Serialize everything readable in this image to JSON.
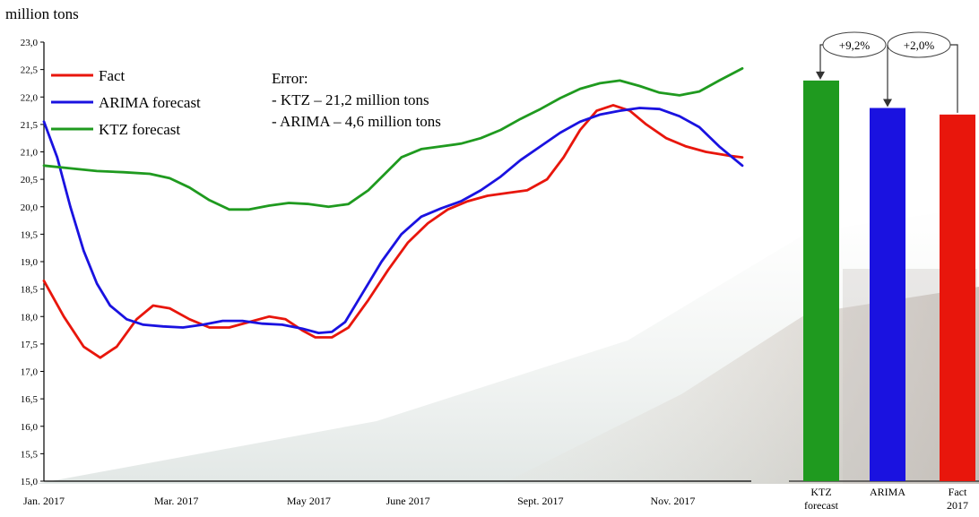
{
  "unit_label": "million tons",
  "error_note": {
    "title": "Error:",
    "lines": [
      "- KTZ – 21,2 million tons",
      "- ARIMA – 4,6 million tons"
    ]
  },
  "colors": {
    "fact": "#e8160c",
    "arima": "#1a12e0",
    "ktz": "#1f9a1f"
  },
  "chart_data": [
    {
      "type": "line",
      "ylim": [
        15.0,
        23.0
      ],
      "yticks": [
        "15,0",
        "15,5",
        "16,0",
        "16,5",
        "17,0",
        "17,5",
        "18,0",
        "18,5",
        "19,0",
        "19,5",
        "20,0",
        "20,5",
        "21,0",
        "21,5",
        "22,0",
        "22,5",
        "23,0"
      ],
      "xticks": [
        {
          "label": "Jan. 2017",
          "x": 0
        },
        {
          "label": "Mar. 2017",
          "x": 2
        },
        {
          "label": "May 2017",
          "x": 4
        },
        {
          "label": "June 2017",
          "x": 5.5
        },
        {
          "label": "Sept. 2017",
          "x": 7.5
        },
        {
          "label": "Nov. 2017",
          "x": 9.5
        }
      ],
      "xlim": [
        0,
        10.7
      ],
      "legend_position": "top-left",
      "series": [
        {
          "name": "Fact",
          "color_key": "fact",
          "points": [
            [
              0,
              18.65
            ],
            [
              0.3,
              18.0
            ],
            [
              0.6,
              17.45
            ],
            [
              0.85,
              17.25
            ],
            [
              1.1,
              17.45
            ],
            [
              1.4,
              17.95
            ],
            [
              1.65,
              18.2
            ],
            [
              1.9,
              18.15
            ],
            [
              2.2,
              17.95
            ],
            [
              2.5,
              17.8
            ],
            [
              2.8,
              17.8
            ],
            [
              3.1,
              17.9
            ],
            [
              3.4,
              18.0
            ],
            [
              3.65,
              17.95
            ],
            [
              3.9,
              17.75
            ],
            [
              4.1,
              17.62
            ],
            [
              4.35,
              17.62
            ],
            [
              4.6,
              17.8
            ],
            [
              4.9,
              18.3
            ],
            [
              5.2,
              18.85
            ],
            [
              5.5,
              19.35
            ],
            [
              5.8,
              19.7
            ],
            [
              6.1,
              19.95
            ],
            [
              6.4,
              20.1
            ],
            [
              6.7,
              20.2
            ],
            [
              7.0,
              20.25
            ],
            [
              7.3,
              20.3
            ],
            [
              7.6,
              20.5
            ],
            [
              7.85,
              20.9
            ],
            [
              8.1,
              21.4
            ],
            [
              8.35,
              21.75
            ],
            [
              8.6,
              21.85
            ],
            [
              8.85,
              21.75
            ],
            [
              9.1,
              21.5
            ],
            [
              9.4,
              21.25
            ],
            [
              9.7,
              21.1
            ],
            [
              10.0,
              21.0
            ],
            [
              10.35,
              20.93
            ],
            [
              10.55,
              20.9
            ]
          ]
        },
        {
          "name": "ARIMA  forecast",
          "color_key": "arima",
          "points": [
            [
              0,
              21.55
            ],
            [
              0.2,
              20.9
            ],
            [
              0.4,
              20.0
            ],
            [
              0.6,
              19.2
            ],
            [
              0.8,
              18.6
            ],
            [
              1.0,
              18.2
            ],
            [
              1.25,
              17.95
            ],
            [
              1.5,
              17.85
            ],
            [
              1.8,
              17.82
            ],
            [
              2.1,
              17.8
            ],
            [
              2.4,
              17.85
            ],
            [
              2.7,
              17.92
            ],
            [
              3.0,
              17.92
            ],
            [
              3.3,
              17.87
            ],
            [
              3.6,
              17.85
            ],
            [
              3.9,
              17.78
            ],
            [
              4.15,
              17.7
            ],
            [
              4.35,
              17.72
            ],
            [
              4.55,
              17.9
            ],
            [
              4.8,
              18.4
            ],
            [
              5.1,
              19.0
            ],
            [
              5.4,
              19.5
            ],
            [
              5.7,
              19.82
            ],
            [
              6.0,
              19.97
            ],
            [
              6.3,
              20.1
            ],
            [
              6.6,
              20.3
            ],
            [
              6.9,
              20.55
            ],
            [
              7.2,
              20.85
            ],
            [
              7.5,
              21.1
            ],
            [
              7.8,
              21.35
            ],
            [
              8.1,
              21.55
            ],
            [
              8.4,
              21.68
            ],
            [
              8.7,
              21.75
            ],
            [
              9.0,
              21.8
            ],
            [
              9.3,
              21.78
            ],
            [
              9.6,
              21.65
            ],
            [
              9.9,
              21.45
            ],
            [
              10.2,
              21.1
            ],
            [
              10.55,
              20.75
            ]
          ]
        },
        {
          "name": "KTZ forecast",
          "color_key": "ktz",
          "points": [
            [
              0,
              20.75
            ],
            [
              0.4,
              20.7
            ],
            [
              0.8,
              20.65
            ],
            [
              1.2,
              20.63
            ],
            [
              1.6,
              20.6
            ],
            [
              1.9,
              20.52
            ],
            [
              2.2,
              20.35
            ],
            [
              2.5,
              20.12
            ],
            [
              2.8,
              19.95
            ],
            [
              3.1,
              19.95
            ],
            [
              3.4,
              20.02
            ],
            [
              3.7,
              20.07
            ],
            [
              4.0,
              20.05
            ],
            [
              4.3,
              20.0
            ],
            [
              4.6,
              20.05
            ],
            [
              4.9,
              20.3
            ],
            [
              5.15,
              20.6
            ],
            [
              5.4,
              20.9
            ],
            [
              5.7,
              21.05
            ],
            [
              6.0,
              21.1
            ],
            [
              6.3,
              21.15
            ],
            [
              6.6,
              21.25
            ],
            [
              6.9,
              21.4
            ],
            [
              7.2,
              21.6
            ],
            [
              7.5,
              21.78
            ],
            [
              7.8,
              21.98
            ],
            [
              8.1,
              22.15
            ],
            [
              8.4,
              22.25
            ],
            [
              8.7,
              22.3
            ],
            [
              9.0,
              22.2
            ],
            [
              9.3,
              22.08
            ],
            [
              9.6,
              22.03
            ],
            [
              9.9,
              22.1
            ],
            [
              10.2,
              22.3
            ],
            [
              10.55,
              22.52
            ]
          ]
        }
      ]
    },
    {
      "type": "bar",
      "ylim": [
        15.0,
        23.0
      ],
      "categories": [
        {
          "label_lines": [
            "KTZ",
            "forecast"
          ],
          "value": 22.3,
          "color_key": "ktz"
        },
        {
          "label_lines": [
            "ARIMA"
          ],
          "value": 21.8,
          "color_key": "arima"
        },
        {
          "label_lines": [
            "Fact",
            "2017"
          ],
          "value": 21.68,
          "color_key": "fact"
        }
      ],
      "annotations": [
        "+9,2%",
        "+2,0%"
      ]
    }
  ]
}
